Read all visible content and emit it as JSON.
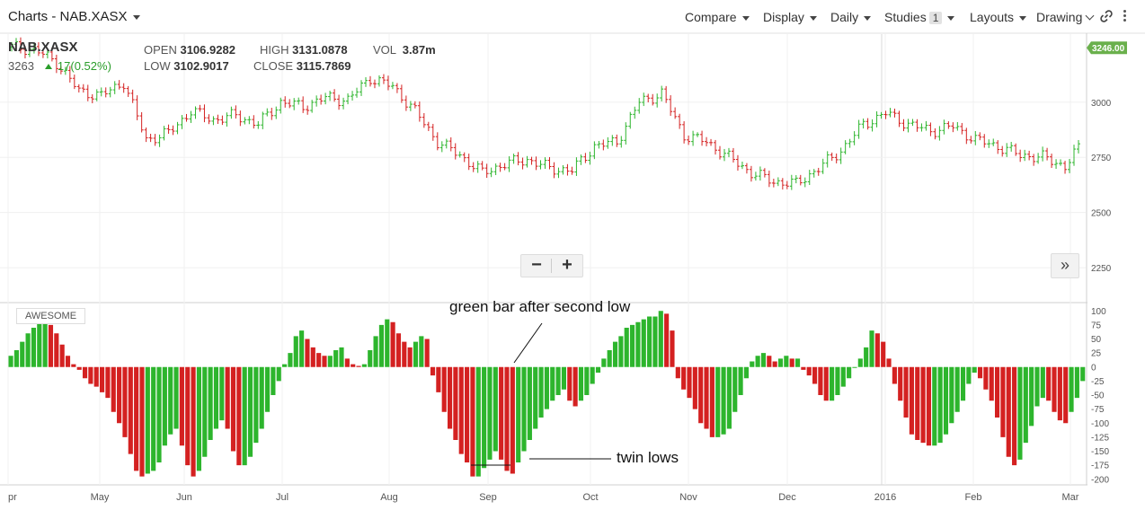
{
  "header": {
    "title": "Charts - NAB.XASX",
    "menus": {
      "compare": "Compare",
      "display": "Display",
      "daily": "Daily",
      "studies": "Studies",
      "studies_count": "1",
      "layouts": "Layouts",
      "drawing": "Drawing"
    }
  },
  "quote": {
    "symbol": "NAB.XASX",
    "last": "3263",
    "change": "17(0.52%)",
    "open_label": "OPEN",
    "open": "3106.9282",
    "high_label": "HIGH",
    "high": "3131.0878",
    "vol_label": "VOL",
    "vol": "3.87m",
    "low_label": "LOW",
    "low": "3102.9017",
    "close_label": "CLOSE",
    "close": "3115.7869"
  },
  "study_label": "AWESOME",
  "annotations": {
    "green_bar": "green bar after second low",
    "twin_lows": "twin lows"
  },
  "colors": {
    "up": "#2db52d",
    "down": "#d42121",
    "price_badge": "#6ab04c"
  },
  "chart_data": [
    {
      "type": "line",
      "series": [
        {
          "x": [
            0,
            5,
            10,
            15,
            20,
            25,
            30,
            35,
            40,
            45,
            50,
            55,
            60,
            65,
            70,
            75,
            80,
            85,
            90,
            95,
            100,
            105,
            110,
            115,
            120,
            125,
            130,
            135,
            140,
            145,
            150,
            155,
            160,
            165,
            170,
            175,
            180,
            185,
            190,
            195,
            200,
            205,
            210,
            215,
            220,
            225,
            230,
            235,
            238
          ],
          "values": [
            3250,
            3240,
            3180,
            3050,
            3030,
            3090,
            2830,
            2860,
            2960,
            2920,
            2940,
            2900,
            3000,
            2980,
            3020,
            3010,
            3110,
            3070,
            2960,
            2820,
            2760,
            2680,
            2720,
            2740,
            2700,
            2690,
            2800,
            2820,
            3000,
            3040,
            2850,
            2820,
            2750,
            2680,
            2640,
            2630,
            2700,
            2780,
            2900,
            2950,
            2900,
            2870,
            2890,
            2830,
            2800,
            2760,
            2750,
            2710,
            2790
          ]
        }
      ],
      "price_badge": "3246.00",
      "y_ticks": [
        2250,
        2500,
        2750,
        3000
      ],
      "ylim": [
        2100,
        3300
      ]
    },
    {
      "type": "bar",
      "series": [
        {
          "values": [
            20,
            30,
            45,
            60,
            70,
            80,
            85,
            75,
            60,
            40,
            20,
            5,
            -5,
            -20,
            -30,
            -35,
            -45,
            -55,
            -80,
            -100,
            -125,
            -155,
            -185,
            -195,
            -190,
            -185,
            -170,
            -140,
            -120,
            -110,
            -140,
            -175,
            -195,
            -185,
            -160,
            -130,
            -110,
            -95,
            -110,
            -150,
            -175,
            -175,
            -160,
            -135,
            -110,
            -80,
            -50,
            -25,
            5,
            25,
            55,
            65,
            50,
            35,
            25,
            20,
            20,
            30,
            35,
            15,
            5,
            2,
            5,
            30,
            55,
            75,
            85,
            80,
            60,
            45,
            35,
            45,
            55,
            50,
            -15,
            -45,
            -80,
            -110,
            -130,
            -155,
            -170,
            -195,
            -195,
            -180,
            -165,
            -150,
            -165,
            -185,
            -190,
            -170,
            -150,
            -130,
            -110,
            -90,
            -75,
            -60,
            -50,
            -40,
            -60,
            -70,
            -60,
            -50,
            -30,
            -10,
            15,
            30,
            45,
            55,
            70,
            75,
            80,
            85,
            90,
            90,
            100,
            95,
            65,
            -20,
            -40,
            -55,
            -75,
            -100,
            -110,
            -125,
            -125,
            -120,
            -110,
            -80,
            -50,
            -20,
            10,
            20,
            25,
            20,
            10,
            15,
            20,
            15,
            15,
            -5,
            -15,
            -30,
            -50,
            -60,
            -60,
            -50,
            -35,
            -20,
            0,
            15,
            35,
            65,
            60,
            45,
            15,
            -30,
            -60,
            -90,
            -120,
            -130,
            -135,
            -140,
            -140,
            -135,
            -120,
            -100,
            -80,
            -60,
            -30,
            -10,
            -20,
            -40,
            -60,
            -90,
            -125,
            -160,
            -175,
            -165,
            -135,
            -105,
            -70,
            -55,
            -60,
            -80,
            -95,
            -100,
            -80,
            -55,
            -25
          ]
        }
      ],
      "ylim": [
        -210,
        110
      ],
      "y_ticks": [
        -200,
        -175,
        -150,
        -125,
        -100,
        -75,
        -50,
        -25,
        0,
        25,
        50,
        75,
        100
      ]
    }
  ],
  "x_axis": {
    "ticks": [
      {
        "label": "pr"
      },
      {
        "label": "May"
      },
      {
        "label": "Jun"
      },
      {
        "label": "Jul"
      },
      {
        "label": "Aug"
      },
      {
        "label": "Sep"
      },
      {
        "label": "Oct"
      },
      {
        "label": "Nov"
      },
      {
        "label": "Dec"
      },
      {
        "label": "2016"
      },
      {
        "label": "Feb"
      },
      {
        "label": "Mar"
      }
    ]
  }
}
